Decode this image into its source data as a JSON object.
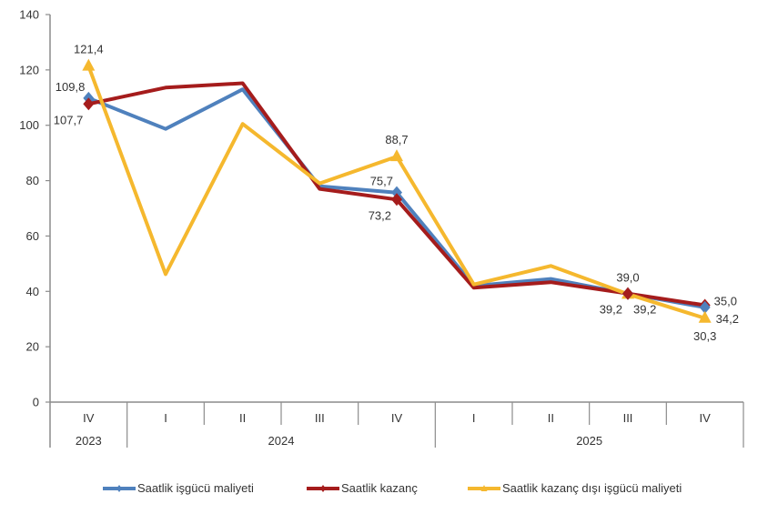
{
  "chart_data": {
    "type": "line",
    "title": "",
    "xlabel": "",
    "ylabel": "",
    "ylim": [
      0,
      140
    ],
    "yticks": [
      0,
      20,
      40,
      60,
      80,
      100,
      120,
      140
    ],
    "ytick_labels": [
      "0",
      "20",
      "40",
      "60",
      "80",
      "100",
      "120",
      "140"
    ],
    "grid": false,
    "legend_position": "bottom",
    "categories": [
      "IV",
      "I",
      "II",
      "III",
      "IV",
      "I",
      "II",
      "III",
      "IV"
    ],
    "year_groups": [
      {
        "label": "2023",
        "start": 0,
        "end": 0
      },
      {
        "label": "2024",
        "start": 1,
        "end": 4
      },
      {
        "label": "2025",
        "start": 5,
        "end": 8
      }
    ],
    "series": [
      {
        "name": "Saatlik işgücü maliyeti",
        "color": "#4f81bd",
        "marker": "diamond",
        "values": [
          109.8,
          98.7,
          113.0,
          78.0,
          75.7,
          42.0,
          44.5,
          39.2,
          34.2
        ]
      },
      {
        "name": "Saatlik kazanç",
        "color": "#a51c1c",
        "marker": "diamond",
        "values": [
          107.7,
          113.6,
          115.2,
          77.0,
          73.2,
          41.3,
          43.3,
          39.2,
          35.0
        ]
      },
      {
        "name": "Saatlik kazanç dışı işgücü maliyeti",
        "color": "#f5b82e",
        "marker": "triangle",
        "values": [
          121.4,
          46.2,
          100.5,
          79.0,
          88.7,
          42.5,
          49.2,
          39.0,
          30.3
        ]
      }
    ],
    "data_labels": [
      {
        "series": 0,
        "index": 0,
        "text": "109,8",
        "pos": "above-left"
      },
      {
        "series": 1,
        "index": 0,
        "text": "107,7",
        "pos": "below-left"
      },
      {
        "series": 2,
        "index": 0,
        "text": "121,4",
        "pos": "above"
      },
      {
        "series": 0,
        "index": 4,
        "text": "75,7",
        "pos": "above-left"
      },
      {
        "series": 1,
        "index": 4,
        "text": "73,2",
        "pos": "below-left"
      },
      {
        "series": 2,
        "index": 4,
        "text": "88,7",
        "pos": "above"
      },
      {
        "series": 2,
        "index": 7,
        "text": "39,0",
        "pos": "above"
      },
      {
        "series": 0,
        "index": 7,
        "text": "39,2",
        "pos": "below-left"
      },
      {
        "series": 1,
        "index": 7,
        "text": "39,2",
        "pos": "below-right"
      },
      {
        "series": 1,
        "index": 8,
        "text": "35,0",
        "pos": "right-up"
      },
      {
        "series": 0,
        "index": 8,
        "text": "34,2",
        "pos": "right-down"
      },
      {
        "series": 2,
        "index": 8,
        "text": "30,3",
        "pos": "below"
      }
    ]
  }
}
